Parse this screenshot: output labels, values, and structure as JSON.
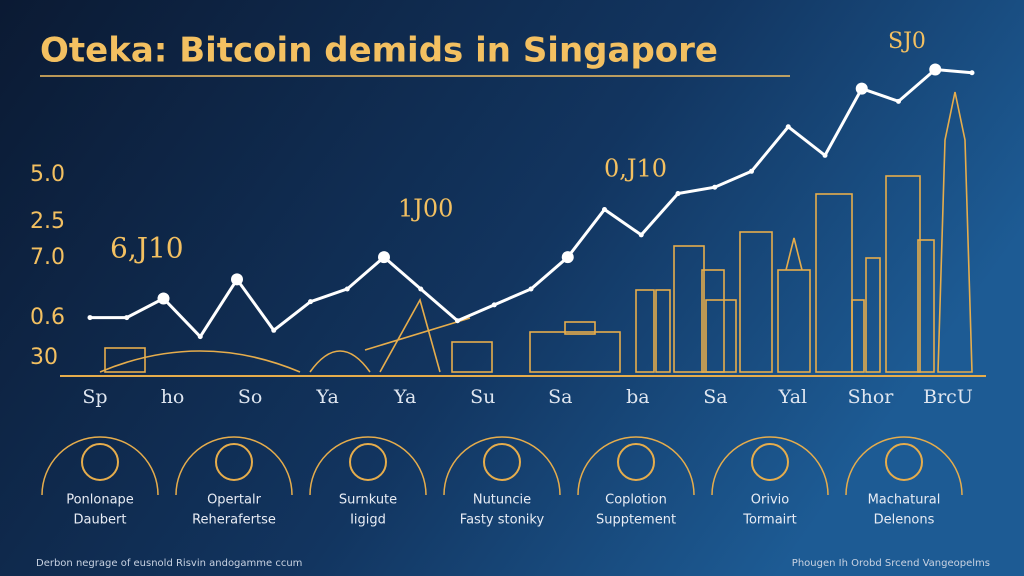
{
  "chart_data": {
    "type": "line",
    "title": "Oteka: Bitcoin demids in Singapore",
    "color": "#ffffff",
    "ylim": [
      0,
      100
    ],
    "y_labels": [
      "5.0",
      "2.5",
      "7.0",
      "0.6",
      "30"
    ],
    "x_labels": [
      "Sp",
      "ho",
      "So",
      "Ya",
      "Ya",
      "Su",
      "Sa",
      "ba",
      "Sa",
      "Yal",
      "Shor",
      "BrcU"
    ],
    "values": [
      19,
      19,
      25,
      13,
      31,
      15,
      24,
      28,
      38,
      28,
      18,
      23,
      28,
      38,
      53,
      45,
      58,
      60,
      65,
      79,
      70,
      91,
      87,
      97,
      96
    ],
    "annotations": [
      "6,J10",
      "1J00",
      "0,J10",
      "SJ0"
    ],
    "icons": [
      {
        "line1": "Ponlonape",
        "line2": "Daubert"
      },
      {
        "line1": "Opertalr",
        "line2": "Reherafertse"
      },
      {
        "line1": "Surnkute",
        "line2": "Iigigd"
      },
      {
        "line1": "Nutuncie",
        "line2": "Fasty stoniky"
      },
      {
        "line1": "Coplotion",
        "line2": "Supptement"
      },
      {
        "line1": "Orivio",
        "line2": "Tormairt"
      },
      {
        "line1": "Machatural",
        "line2": "Delenons"
      }
    ],
    "footer_left": "Derbon negrage of eusnold Risvin andogamme ccum",
    "footer_right": "Phougen Ih Orobd Srcend Vangeopelms"
  }
}
